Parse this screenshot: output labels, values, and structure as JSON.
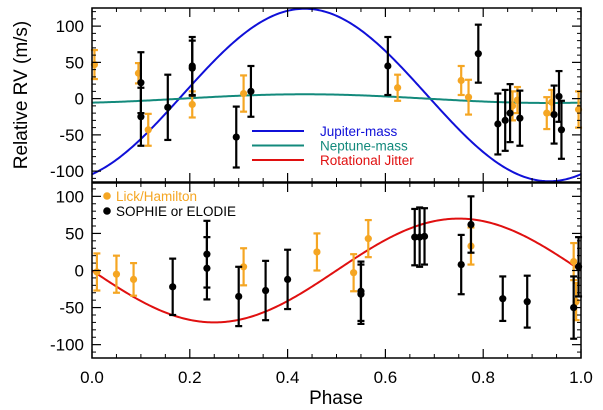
{
  "chart_data": [
    {
      "type": "scatter",
      "panel": "top",
      "xlabel": "",
      "ylabel": "Relative RV (m/s)",
      "xlim": [
        0.0,
        1.0
      ],
      "ylim": [
        -115,
        125
      ],
      "yticks": [
        -100,
        -50,
        0,
        50,
        100
      ],
      "yticks_labels": [
        "-100",
        "-50",
        "0",
        "50",
        "100"
      ],
      "legend": {
        "position": "bottom-center",
        "entries": [
          {
            "label": "Jupiter-mass",
            "color": "#1010d8"
          },
          {
            "label": "Neptune-mass",
            "color": "#138a7c"
          },
          {
            "label": "Rotational Jitter",
            "color": "#e01010"
          }
        ]
      },
      "curves": [
        {
          "name": "Jupiter-mass",
          "color": "#1010d8",
          "amplitude": 119,
          "offset": 5,
          "peak_phase": 0.435
        },
        {
          "name": "Neptune-mass",
          "color": "#138a7c",
          "amplitude": 6,
          "offset": 0,
          "peak_phase": 0.435
        }
      ],
      "series": [
        {
          "color": "#f5a623",
          "points": [
            {
              "x": 0.005,
              "y": 47,
              "err": 20
            },
            {
              "x": 0.095,
              "y": 35,
              "err": 14
            },
            {
              "x": 0.115,
              "y": -43,
              "err": 22
            },
            {
              "x": 0.205,
              "y": -8,
              "err": 18
            },
            {
              "x": 0.31,
              "y": 7,
              "err": 25
            },
            {
              "x": 0.625,
              "y": 15,
              "err": 18
            },
            {
              "x": 0.755,
              "y": 25,
              "err": 20
            },
            {
              "x": 0.77,
              "y": 2,
              "err": 24
            },
            {
              "x": 0.86,
              "y": -10,
              "err": 20
            },
            {
              "x": 0.87,
              "y": -2,
              "err": 18
            },
            {
              "x": 0.93,
              "y": -20,
              "err": 22
            },
            {
              "x": 0.94,
              "y": -5,
              "err": 17
            },
            {
              "x": 0.995,
              "y": -15,
              "err": 25
            }
          ]
        },
        {
          "color": "#000000",
          "points": [
            {
              "x": 0.1,
              "y": 22,
              "err": 42
            },
            {
              "x": 0.1,
              "y": -25,
              "err": 40
            },
            {
              "x": 0.155,
              "y": -12,
              "err": 45
            },
            {
              "x": 0.205,
              "y": 45,
              "err": 40
            },
            {
              "x": 0.205,
              "y": 42,
              "err": 38
            },
            {
              "x": 0.295,
              "y": -53,
              "err": 42
            },
            {
              "x": 0.325,
              "y": 10,
              "err": 35
            },
            {
              "x": 0.605,
              "y": 45,
              "err": 40
            },
            {
              "x": 0.79,
              "y": 62,
              "err": 40
            },
            {
              "x": 0.83,
              "y": -35,
              "err": 42
            },
            {
              "x": 0.845,
              "y": -30,
              "err": 42
            },
            {
              "x": 0.855,
              "y": -20,
              "err": 40
            },
            {
              "x": 0.875,
              "y": -27,
              "err": 38
            },
            {
              "x": 0.945,
              "y": -22,
              "err": 40
            },
            {
              "x": 0.955,
              "y": 3,
              "err": 35
            },
            {
              "x": 0.96,
              "y": -43,
              "err": 40
            }
          ]
        }
      ]
    },
    {
      "type": "scatter",
      "panel": "bottom",
      "xlabel": "Phase",
      "ylabel": "",
      "xlim": [
        0.0,
        1.0
      ],
      "ylim": [
        -118,
        118
      ],
      "xticks": [
        0.0,
        0.2,
        0.4,
        0.6,
        0.8,
        1.0
      ],
      "xticks_labels": [
        "0.0",
        "0.2",
        "0.4",
        "0.6",
        "0.8",
        "1.0"
      ],
      "yticks": [
        -100,
        -50,
        0,
        50,
        100
      ],
      "yticks_labels": [
        "-100",
        "-50",
        "0",
        "50",
        "100"
      ],
      "legend": {
        "position": "top-left",
        "entries": [
          {
            "label": "Lick/Hamilton",
            "color": "#f5a623"
          },
          {
            "label": "SOPHIE or ELODIE",
            "color": "#000000"
          }
        ]
      },
      "curves": [
        {
          "name": "Rotational Jitter",
          "color": "#e01010",
          "amplitude": 70,
          "offset": 0,
          "peak_phase": 0.75
        }
      ],
      "series": [
        {
          "name": "Lick/Hamilton",
          "color": "#f5a623",
          "points": [
            {
              "x": 0.01,
              "y": -2,
              "err": 25
            },
            {
              "x": 0.05,
              "y": -5,
              "err": 25
            },
            {
              "x": 0.085,
              "y": -12,
              "err": 22
            },
            {
              "x": 0.31,
              "y": 5,
              "err": 25
            },
            {
              "x": 0.46,
              "y": 25,
              "err": 25
            },
            {
              "x": 0.535,
              "y": -3,
              "err": 25
            },
            {
              "x": 0.565,
              "y": 43,
              "err": 25
            },
            {
              "x": 0.775,
              "y": 33,
              "err": 25
            },
            {
              "x": 0.985,
              "y": 12,
              "err": 25
            },
            {
              "x": 0.99,
              "y": -42,
              "err": 25
            }
          ]
        },
        {
          "name": "SOPHIE or ELODIE",
          "color": "#000000",
          "points": [
            {
              "x": 0.165,
              "y": -22,
              "err": 38
            },
            {
              "x": 0.235,
              "y": 22,
              "err": 45
            },
            {
              "x": 0.235,
              "y": 3,
              "err": 42
            },
            {
              "x": 0.3,
              "y": -35,
              "err": 40
            },
            {
              "x": 0.355,
              "y": -27,
              "err": 40
            },
            {
              "x": 0.4,
              "y": -12,
              "err": 40
            },
            {
              "x": 0.55,
              "y": -28,
              "err": 40
            },
            {
              "x": 0.55,
              "y": -32,
              "err": 40
            },
            {
              "x": 0.66,
              "y": 45,
              "err": 38
            },
            {
              "x": 0.67,
              "y": 45,
              "err": 40
            },
            {
              "x": 0.68,
              "y": 46,
              "err": 38
            },
            {
              "x": 0.755,
              "y": 8,
              "err": 40
            },
            {
              "x": 0.775,
              "y": 62,
              "err": 38
            },
            {
              "x": 0.84,
              "y": -38,
              "err": 30
            },
            {
              "x": 0.89,
              "y": -42,
              "err": 35
            },
            {
              "x": 0.985,
              "y": -50,
              "err": 42
            },
            {
              "x": 0.995,
              "y": 5,
              "err": 40
            }
          ]
        }
      ]
    }
  ]
}
